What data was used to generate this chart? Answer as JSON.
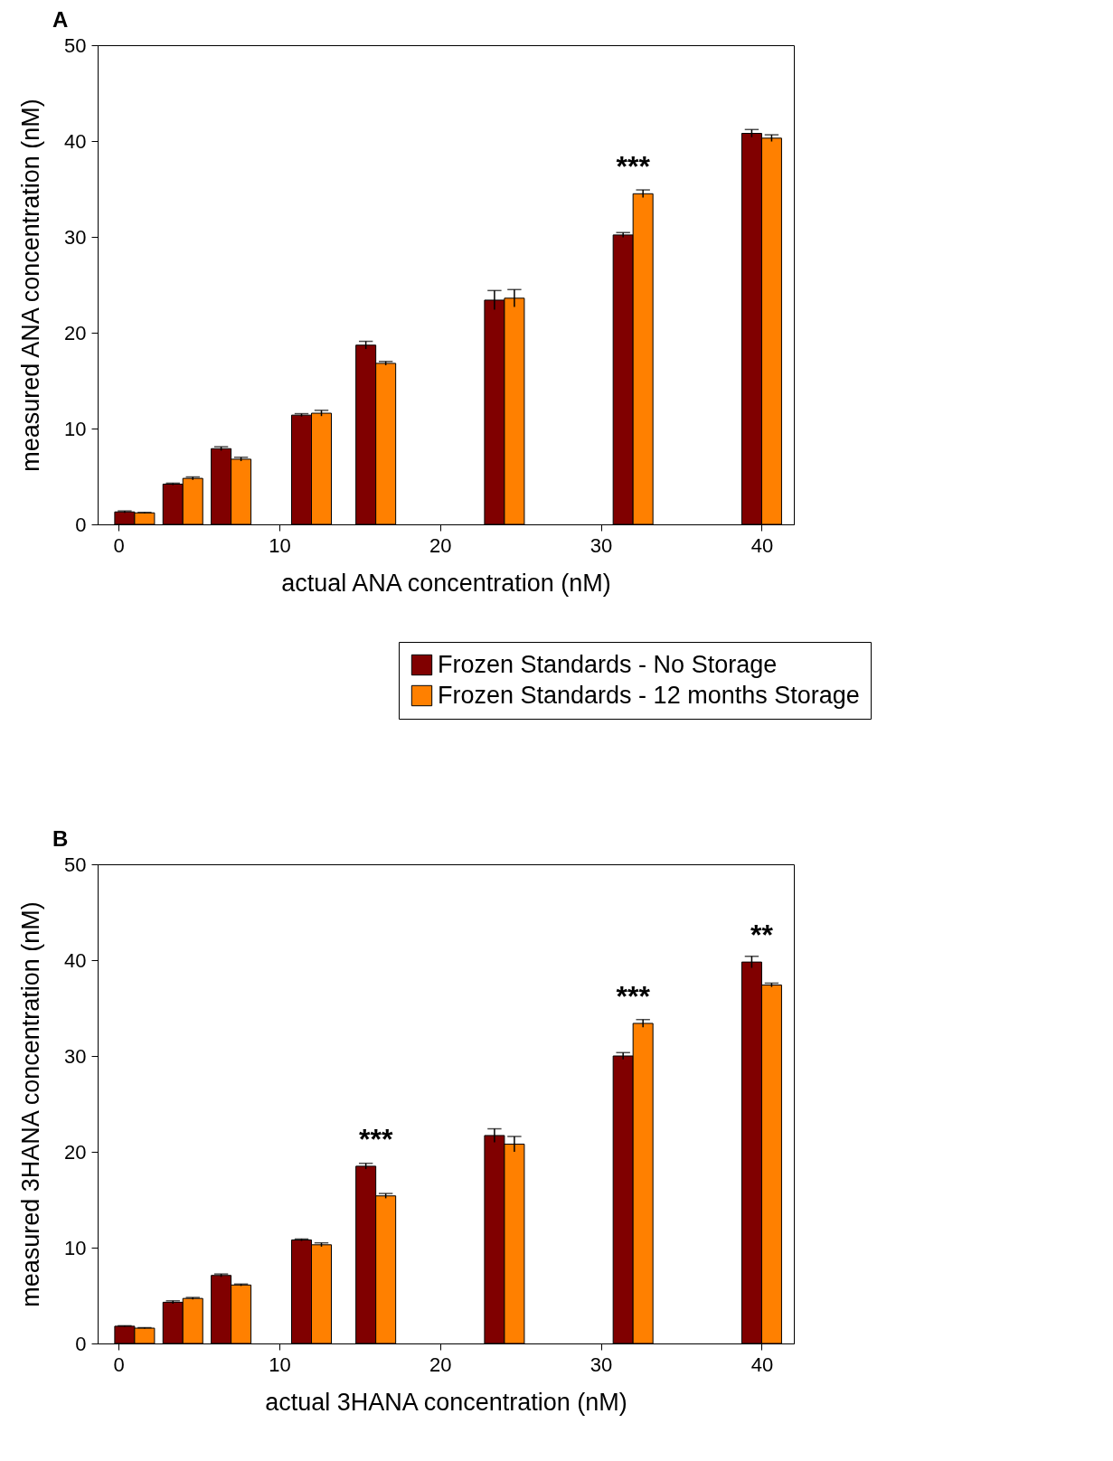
{
  "chart_data": [
    {
      "type": "bar",
      "title": "A",
      "xlabel": "actual ANA concentration (nM)",
      "ylabel": "measured ANA concentration (nM)",
      "x": [
        1,
        4,
        7,
        12,
        16,
        24,
        32,
        40
      ],
      "series": [
        {
          "name": "Frozen Standards - No Storage",
          "color": "#800000",
          "values": [
            1.3,
            4.2,
            7.9,
            11.4,
            18.7,
            23.4,
            30.2,
            40.8
          ],
          "errors": [
            0.1,
            0.1,
            0.2,
            0.15,
            0.4,
            1.0,
            0.25,
            0.4
          ]
        },
        {
          "name": "Frozen Standards - 12 months Storage",
          "color": "#ff8000",
          "values": [
            1.2,
            4.8,
            6.8,
            11.6,
            16.8,
            23.6,
            34.5,
            40.3
          ],
          "errors": [
            0.05,
            0.15,
            0.2,
            0.3,
            0.2,
            0.9,
            0.4,
            0.35
          ]
        }
      ],
      "xlim": [
        -1.3,
        42
      ],
      "xticks": [
        0,
        10,
        20,
        30,
        40
      ],
      "ylim": [
        0,
        50
      ],
      "yticks": [
        0,
        10,
        20,
        30,
        40,
        50
      ],
      "annotations": [
        {
          "text": "***",
          "x": 32,
          "y": 34.5
        }
      ],
      "grid": false,
      "legend": "bottom right"
    },
    {
      "type": "bar",
      "title": "B",
      "xlabel": "actual 3HANA concentration (nM)",
      "ylabel": "measured 3HANA concentration (nM)",
      "x": [
        1,
        4,
        7,
        12,
        16,
        24,
        32,
        40
      ],
      "series": [
        {
          "color": "#800000",
          "values": [
            1.8,
            4.3,
            7.1,
            10.8,
            18.5,
            21.7,
            30.0,
            39.8
          ],
          "errors": [
            0.05,
            0.15,
            0.15,
            0.1,
            0.3,
            0.7,
            0.35,
            0.6
          ]
        },
        {
          "color": "#ff8000",
          "values": [
            1.6,
            4.7,
            6.1,
            10.3,
            15.4,
            20.8,
            33.4,
            37.4
          ],
          "errors": [
            0.05,
            0.1,
            0.1,
            0.2,
            0.25,
            0.8,
            0.4,
            0.2
          ]
        }
      ],
      "xlim": [
        -1.3,
        42
      ],
      "xticks": [
        0,
        10,
        20,
        30,
        40
      ],
      "ylim": [
        0,
        50
      ],
      "yticks": [
        0,
        10,
        20,
        30,
        40,
        50
      ],
      "annotations": [
        {
          "text": "***",
          "x": 16,
          "y": 18.5
        },
        {
          "text": "***",
          "x": 32,
          "y": 33.4
        },
        {
          "text": "**",
          "x": 40,
          "y": 39.8
        }
      ],
      "grid": false,
      "legend": false
    }
  ]
}
